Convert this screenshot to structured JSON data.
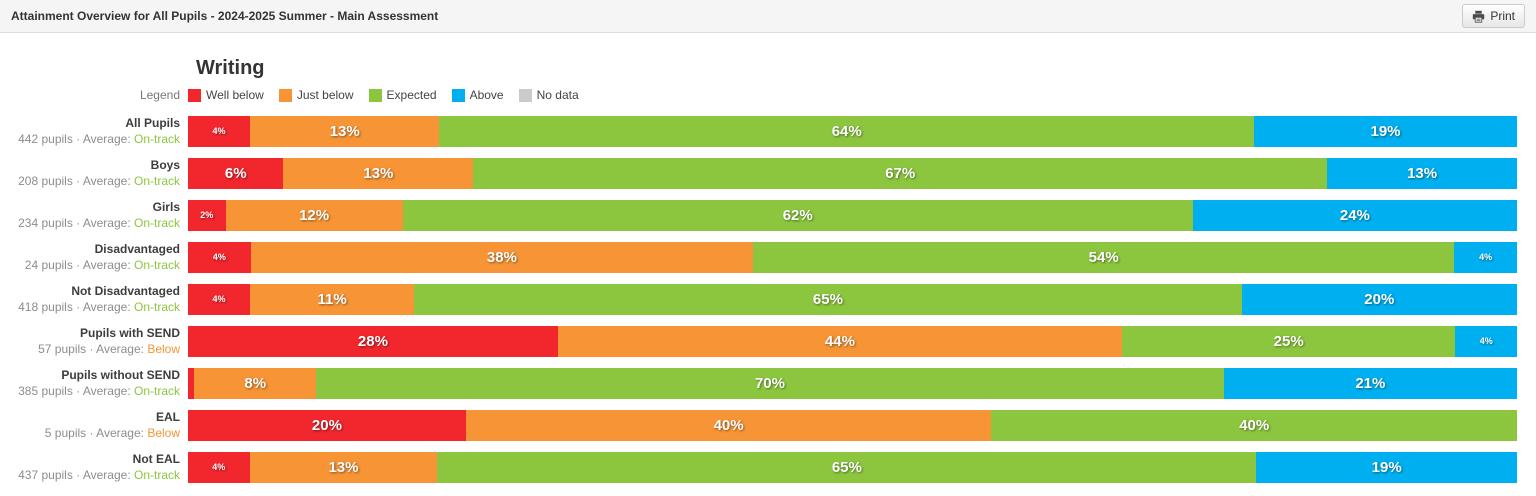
{
  "header": {
    "title": "Attainment Overview for All Pupils - 2024-2025 Summer - Main Assessment",
    "print_label": "Print"
  },
  "section": {
    "title": "Writing"
  },
  "legend": {
    "caption": "Legend",
    "items": [
      {
        "label": "Well below",
        "color": "#f2262d"
      },
      {
        "label": "Just below",
        "color": "#f79436"
      },
      {
        "label": "Expected",
        "color": "#8cc63e"
      },
      {
        "label": "Above",
        "color": "#00aff0"
      },
      {
        "label": "No data",
        "color": "#cbcbcb"
      }
    ]
  },
  "info_format": {
    "separator": "·",
    "average_prefix": "Average:"
  },
  "status_colors": {
    "On-track": "#8cc63e",
    "Below": "#f79436"
  },
  "chart_data": {
    "type": "bar",
    "stacked": true,
    "orientation": "horizontal",
    "unit": "%",
    "title": "Writing",
    "series_names": [
      "Well below",
      "Just below",
      "Expected",
      "Above",
      "No data"
    ],
    "categories": [
      "All Pupils",
      "Boys",
      "Girls",
      "Disadvantaged",
      "Not Disadvantaged",
      "Pupils with SEND",
      "Pupils without SEND",
      "EAL",
      "Not EAL"
    ],
    "rows": [
      {
        "label": "All Pupils",
        "pupils": "442 pupils",
        "average": "On-track",
        "segments": [
          {
            "series": "Well below",
            "value": 4,
            "text": "4%"
          },
          {
            "series": "Just below",
            "value": 13,
            "text": "13%"
          },
          {
            "series": "Expected",
            "value": 64,
            "text": "64%"
          },
          {
            "series": "Above",
            "value": 19,
            "text": "19%"
          }
        ]
      },
      {
        "label": "Boys",
        "pupils": "208 pupils",
        "average": "On-track",
        "segments": [
          {
            "series": "Well below",
            "value": 6,
            "text": "6%"
          },
          {
            "series": "Just below",
            "value": 13,
            "text": "13%"
          },
          {
            "series": "Expected",
            "value": 67,
            "text": "67%"
          },
          {
            "series": "Above",
            "value": 13,
            "text": "13%"
          }
        ]
      },
      {
        "label": "Girls",
        "pupils": "234 pupils",
        "average": "On-track",
        "segments": [
          {
            "series": "Well below",
            "value": 2,
            "text": "2%"
          },
          {
            "series": "Just below",
            "value": 12,
            "text": "12%"
          },
          {
            "series": "Expected",
            "value": 62,
            "text": "62%"
          },
          {
            "series": "Above",
            "value": 24,
            "text": "24%"
          }
        ]
      },
      {
        "label": "Disadvantaged",
        "pupils": "24 pupils",
        "average": "On-track",
        "segments": [
          {
            "series": "Well below",
            "value": 4,
            "text": "4%"
          },
          {
            "series": "Just below",
            "value": 38,
            "text": "38%"
          },
          {
            "series": "Expected",
            "value": 54,
            "text": "54%"
          },
          {
            "series": "Above",
            "value": 4,
            "text": "4%"
          }
        ]
      },
      {
        "label": "Not Disadvantaged",
        "pupils": "418 pupils",
        "average": "On-track",
        "segments": [
          {
            "series": "Well below",
            "value": 4,
            "text": "4%"
          },
          {
            "series": "Just below",
            "value": 11,
            "text": "11%"
          },
          {
            "series": "Expected",
            "value": 65,
            "text": "65%"
          },
          {
            "series": "Above",
            "value": 20,
            "text": "20%"
          }
        ]
      },
      {
        "label": "Pupils with SEND",
        "pupils": "57 pupils",
        "average": "Below",
        "segments": [
          {
            "series": "Well below",
            "value": 28,
            "text": "28%"
          },
          {
            "series": "Just below",
            "value": 44,
            "text": "44%"
          },
          {
            "series": "Expected",
            "value": 25,
            "text": "25%"
          },
          {
            "series": "Above",
            "value": 4,
            "text": "4%"
          }
        ]
      },
      {
        "label": "Pupils without SEND",
        "pupils": "385 pupils",
        "average": "On-track",
        "segments": [
          {
            "series": "Well below",
            "value": 0.5,
            "text": ""
          },
          {
            "series": "Just below",
            "value": 8,
            "text": "8%"
          },
          {
            "series": "Expected",
            "value": 70,
            "text": "70%"
          },
          {
            "series": "Above",
            "value": 21,
            "text": "21%"
          }
        ]
      },
      {
        "label": "EAL",
        "pupils": "5 pupils",
        "average": "Below",
        "segments": [
          {
            "series": "Well below",
            "value": 20,
            "text": "20%"
          },
          {
            "series": "Just below",
            "value": 40,
            "text": "40%"
          },
          {
            "series": "Expected",
            "value": 40,
            "text": "40%"
          }
        ]
      },
      {
        "label": "Not EAL",
        "pupils": "437 pupils",
        "average": "On-track",
        "segments": [
          {
            "series": "Well below",
            "value": 4,
            "text": "4%"
          },
          {
            "series": "Just below",
            "value": 13,
            "text": "13%"
          },
          {
            "series": "Expected",
            "value": 65,
            "text": "65%"
          },
          {
            "series": "Above",
            "value": 19,
            "text": "19%"
          }
        ]
      }
    ]
  }
}
